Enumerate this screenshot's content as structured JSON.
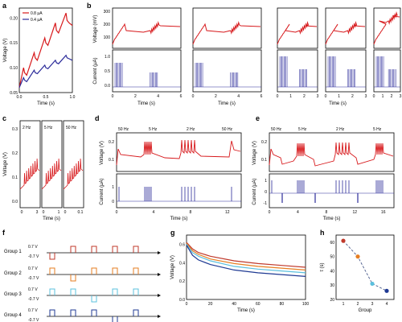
{
  "colors": {
    "red": "#d7191c",
    "blue": "#2b2b9a",
    "axis": "#000000",
    "dashed": "#4a5a8a",
    "g1": "#c0392b",
    "g2": "#e67e22",
    "g3": "#5bc0de",
    "g4": "#1f3a93"
  },
  "labels": {
    "a": "a",
    "b": "b",
    "c": "c",
    "d": "d",
    "e": "e",
    "f": "f",
    "g": "g",
    "h": "h"
  },
  "axes": {
    "voltage_v": "Voltage (V)",
    "voltage_mv": "Voltage (mV)",
    "current": "Current (μA)",
    "time_s": "Time (s)",
    "tau": "τ (s)",
    "group": "Group"
  },
  "panel_a": {
    "legend": [
      "0.8 μA",
      "0.4 μA"
    ],
    "yticks": [
      "0.20",
      "0.15",
      "0.10",
      "0.05"
    ],
    "xticks": [
      "0.0",
      "0.5",
      "1.0"
    ]
  },
  "panel_b": {
    "vticks": [
      "300",
      "200",
      "100"
    ],
    "iticks": [
      "1.0",
      "0.5",
      "0.0"
    ],
    "xticks": [
      [
        "0",
        "2",
        "4",
        "6"
      ],
      [
        "0",
        "2",
        "4",
        "6"
      ],
      [
        "0",
        "1",
        "2",
        "3"
      ],
      [
        "0",
        "1",
        "2",
        "3"
      ],
      [
        "0",
        "1",
        "2",
        "3"
      ]
    ]
  },
  "panel_c": {
    "freqs": [
      "2 Hz",
      "5 Hz",
      "50 Hz"
    ],
    "yticks": [
      "0.3",
      "0.2",
      "0.1",
      "0.0"
    ],
    "xticks": [
      [
        "0",
        "3"
      ],
      [
        "0",
        "1"
      ],
      [
        "0",
        "0.1"
      ]
    ]
  },
  "panel_d": {
    "freqs": [
      "50 Hz",
      "5 Hz",
      "2 Hz",
      "50 Hz"
    ],
    "vticks": [
      "0.2",
      "0.1"
    ],
    "iticks": [
      "1",
      "0"
    ],
    "xticks": [
      "0",
      "4",
      "8",
      "12"
    ]
  },
  "panel_e": {
    "freqs": [
      "50 Hz",
      "5 Hz",
      "2 Hz",
      "5 Hz"
    ],
    "vticks": [
      "0.2",
      "0.1"
    ],
    "iticks": [
      "1",
      "0",
      "-1"
    ],
    "xticks": [
      "0",
      "4",
      "8",
      "12",
      "16"
    ]
  },
  "panel_f": {
    "groups": [
      "Group 1",
      "Group 2",
      "Group 3",
      "Group 4"
    ],
    "vpos": "0.7 V",
    "vneg": "-0.7 V"
  },
  "panel_g": {
    "yticks": [
      "0.6",
      "0.4",
      "0.2",
      "0.0"
    ],
    "xticks": [
      "0",
      "20",
      "40",
      "60",
      "80",
      "100"
    ]
  },
  "panel_h": {
    "yticks": [
      "60",
      "50",
      "40",
      "30",
      "20"
    ],
    "xticks": [
      "1",
      "2",
      "3",
      "4"
    ]
  },
  "chart_data": [
    {
      "panel": "a",
      "type": "line",
      "xlabel": "Time (s)",
      "ylabel": "Voltage (V)",
      "xlim": [
        0,
        1.0
      ],
      "ylim": [
        0.05,
        0.22
      ],
      "series": [
        {
          "name": "0.8 μA",
          "color": "#d7191c",
          "x": [
            0.0,
            0.08,
            0.1,
            0.14,
            0.28,
            0.3,
            0.34,
            0.48,
            0.5,
            0.54,
            0.68,
            0.7,
            0.74,
            0.88,
            0.9,
            0.94,
            1.0
          ],
          "y": [
            0.06,
            0.1,
            0.09,
            0.085,
            0.13,
            0.12,
            0.115,
            0.16,
            0.15,
            0.145,
            0.19,
            0.175,
            0.17,
            0.21,
            0.195,
            0.19,
            0.185
          ]
        },
        {
          "name": "0.4 μA",
          "color": "#2b2b9a",
          "x": [
            0.0,
            0.08,
            0.1,
            0.14,
            0.28,
            0.3,
            0.34,
            0.48,
            0.5,
            0.54,
            0.68,
            0.7,
            0.74,
            0.88,
            0.9,
            0.94,
            1.0
          ],
          "y": [
            0.06,
            0.08,
            0.075,
            0.072,
            0.095,
            0.09,
            0.088,
            0.105,
            0.1,
            0.098,
            0.115,
            0.11,
            0.108,
            0.125,
            0.12,
            0.118,
            0.115
          ]
        }
      ]
    },
    {
      "panel": "g",
      "type": "line",
      "xlabel": "Time (s)",
      "ylabel": "Voltage (V)",
      "xlim": [
        0,
        100
      ],
      "ylim": [
        0.0,
        0.7
      ],
      "series": [
        {
          "color": "#c0392b",
          "x": [
            0,
            5,
            10,
            20,
            40,
            60,
            80,
            100
          ],
          "y": [
            0.62,
            0.55,
            0.51,
            0.47,
            0.42,
            0.39,
            0.37,
            0.35
          ]
        },
        {
          "color": "#e67e22",
          "x": [
            0,
            5,
            10,
            20,
            40,
            60,
            80,
            100
          ],
          "y": [
            0.61,
            0.53,
            0.49,
            0.44,
            0.39,
            0.36,
            0.34,
            0.32
          ]
        },
        {
          "color": "#5bc0de",
          "x": [
            0,
            5,
            10,
            20,
            40,
            60,
            80,
            100
          ],
          "y": [
            0.6,
            0.51,
            0.47,
            0.42,
            0.36,
            0.33,
            0.31,
            0.29
          ]
        },
        {
          "color": "#1f3a93",
          "x": [
            0,
            5,
            10,
            20,
            40,
            60,
            80,
            100
          ],
          "y": [
            0.59,
            0.48,
            0.43,
            0.38,
            0.32,
            0.29,
            0.27,
            0.25
          ]
        }
      ]
    },
    {
      "panel": "h",
      "type": "scatter",
      "xlabel": "Group",
      "ylabel": "τ (s)",
      "xlim": [
        0.5,
        4.5
      ],
      "ylim": [
        20,
        65
      ],
      "categories": [
        "1",
        "2",
        "3",
        "4"
      ],
      "values": [
        61,
        50,
        31,
        26
      ],
      "colors": [
        "#c0392b",
        "#e67e22",
        "#5bc0de",
        "#1f3a93"
      ]
    }
  ]
}
